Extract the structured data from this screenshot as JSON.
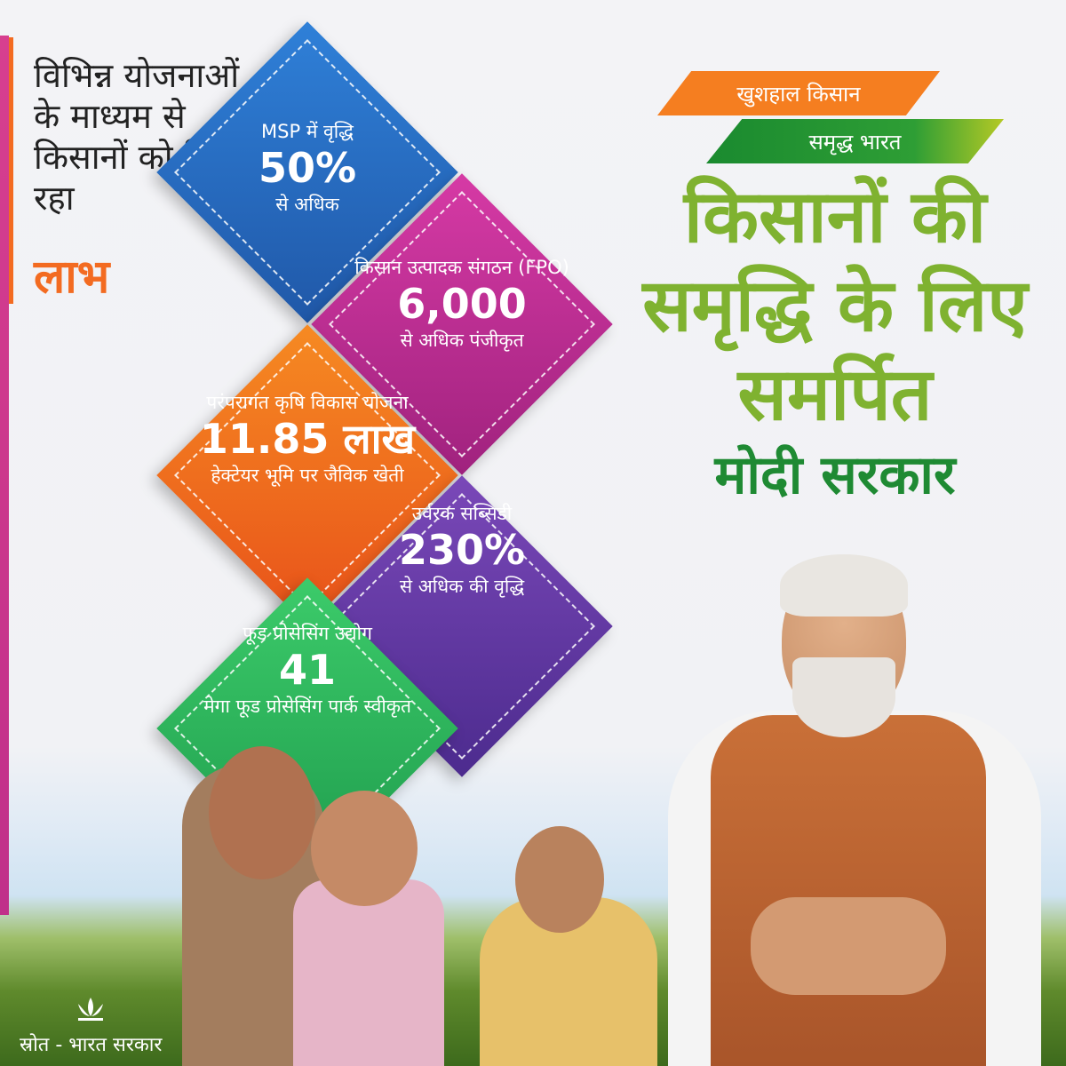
{
  "lead": {
    "text": "विभिन्न योजनाओं के माध्यम से किसानों को मिल रहा",
    "highlight": "लाभ"
  },
  "tiles": [
    {
      "top": "MSP में वृद्धि",
      "value": "50%",
      "bottom": "से अधिक",
      "color": "#2b6fc4"
    },
    {
      "top": "किसान उत्पादक संगठन (FPO)",
      "value": "6,000",
      "bottom": "से अधिक पंजीकृत",
      "color": "#c02c95"
    },
    {
      "top": "परंपरागत कृषि विकास योजना",
      "value": "11.85 लाख",
      "bottom": "हेक्टेयर भूमि पर जैविक खेती",
      "color": "#ef6b1e"
    },
    {
      "top": "उर्वरक सब्सिडी",
      "value": "230%",
      "bottom": "से अधिक की वृद्धि",
      "color": "#5e3aa0"
    },
    {
      "top": "फूड प्रोसेसिंग उद्योग",
      "value": "41",
      "bottom": "मेगा फूड प्रोसेसिंग पार्क स्वीकृत",
      "color": "#2fb55b"
    }
  ],
  "ribbons": {
    "saffron": "खुशहाल किसान",
    "green": "समृद्ध भारत"
  },
  "headline": {
    "line1": "किसानों की",
    "line2": "समृद्धि के लिए",
    "line3": "समर्पित",
    "line4": "मोदी सरकार"
  },
  "footer": {
    "source": "स्रोत - भारत सरकार"
  }
}
